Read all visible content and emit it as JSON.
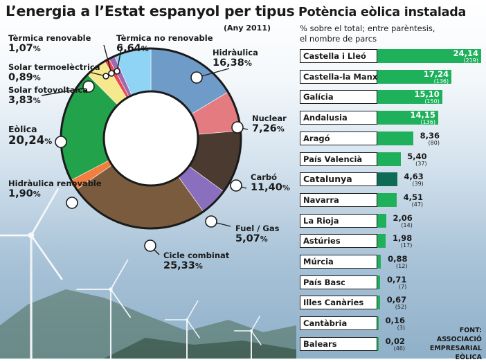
{
  "main_title": "L’energia a l’Estat espanyol per tipus",
  "main_subtitle": "(Any 2011)",
  "side_title": "Potència eòlica instalada",
  "side_subtitle_line1": "% sobre el total; entre parèntesis,",
  "side_subtitle_line2": "el nombre de parcs",
  "source_note": "FONT: ASSOCIACIÓ\nEMPRESARIAL\nEÒLICA",
  "chart_data": [
    {
      "type": "pie",
      "title": "L’energia a l’Estat espanyol per tipus",
      "subtitle": "(Any 2011)",
      "unit": "%",
      "slices": [
        {
          "name": "Hidràulica",
          "value": 16.38,
          "label": "16,38",
          "color": "#6f9bc8"
        },
        {
          "name": "Nuclear",
          "value": 7.26,
          "label": "7,26",
          "color": "#e47b80"
        },
        {
          "name": "Carbó",
          "value": 11.4,
          "label": "11,40",
          "color": "#4a3a30"
        },
        {
          "name": "Fuel / Gas",
          "value": 5.07,
          "label": "5,07",
          "color": "#8b6fbf"
        },
        {
          "name": "Cicle combinat",
          "value": 25.33,
          "label": "25,33",
          "color": "#7a5b3e"
        },
        {
          "name": "Hidràulica renovable",
          "value": 1.9,
          "label": "1,90",
          "color": "#f27e3f"
        },
        {
          "name": "Eòlica",
          "value": 20.24,
          "label": "20,24",
          "color": "#22a24b"
        },
        {
          "name": "Solar fotovoltaica",
          "value": 3.83,
          "label": "3,83",
          "color": "#f6e88c"
        },
        {
          "name": "Solar termoelèctrica",
          "value": 0.89,
          "label": "0,89",
          "color": "#e9494c"
        },
        {
          "name": "Tèrmica renovable",
          "value": 1.07,
          "label": "1,07",
          "color": "#a16ab0"
        },
        {
          "name": "Tèrmica no renovable",
          "value": 6.64,
          "label": "6,64",
          "color": "#8fd3f5"
        }
      ]
    },
    {
      "type": "bar",
      "orientation": "horizontal",
      "title": "Potència eòlica instalada",
      "subtitle": "% sobre el total; entre parèntesis, el nombre de parcs",
      "highlight": "Catalunya",
      "bar_color": "#1fb05c",
      "highlight_color": "#0e6b56",
      "categories": [
        "Castella i Lleó",
        "Castella-la Manxa",
        "Galícia",
        "Andalusia",
        "Aragó",
        "País Valencià",
        "Catalunya",
        "Navarra",
        "La Rioja",
        "Astúries",
        "Múrcia",
        "País Basc",
        "Illes Canàries",
        "Cantàbria",
        "Balears"
      ],
      "values": [
        24.14,
        17.24,
        15.1,
        14.15,
        8.36,
        5.4,
        4.63,
        4.51,
        2.06,
        1.98,
        0.88,
        0.71,
        0.67,
        0.16,
        0.02
      ],
      "value_labels": [
        "24,14",
        "17,24",
        "15,10",
        "14,15",
        "8,36",
        "5,40",
        "4,63",
        "4,51",
        "2,06",
        "1,98",
        "0,88",
        "0,71",
        "0,67",
        "0,16",
        "0,02"
      ],
      "parks_labels": [
        "(219)",
        "(136)",
        "(150)",
        "(136)",
        "(80)",
        "(37)",
        "(39)",
        "(47)",
        "(14)",
        "(17)",
        "(12)",
        "(7)",
        "(52)",
        "(3)",
        "(46)"
      ]
    }
  ]
}
